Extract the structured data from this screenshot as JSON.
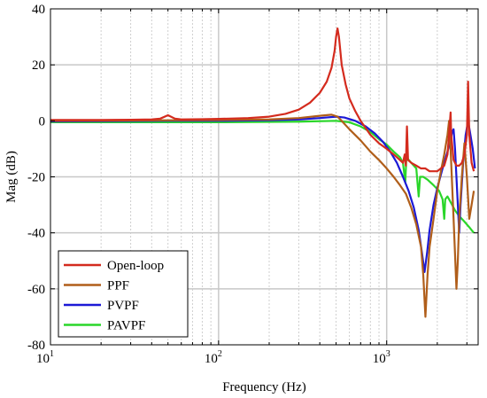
{
  "chart_data": {
    "type": "line",
    "title": "",
    "xlabel": "Frequency (Hz)",
    "ylabel": "Mag (dB)",
    "xscale": "log",
    "xlim": [
      10,
      3500
    ],
    "ylim": [
      -80,
      40
    ],
    "grid": true,
    "legend_position": "bottom-left",
    "x_ticks": [
      {
        "value": 10,
        "base": "10",
        "exp": "1"
      },
      {
        "value": 100,
        "base": "10",
        "exp": "2"
      },
      {
        "value": 1000,
        "base": "10",
        "exp": "3"
      }
    ],
    "y_ticks": [
      {
        "value": 40,
        "label": "40"
      },
      {
        "value": 20,
        "label": "20"
      },
      {
        "value": 0,
        "label": "0"
      },
      {
        "value": -20,
        "label": "-20"
      },
      {
        "value": -40,
        "label": "-40"
      },
      {
        "value": -60,
        "label": "-60"
      },
      {
        "value": -80,
        "label": "-80"
      }
    ],
    "series": [
      {
        "name": "Open-loop",
        "color": "#d42b1e",
        "points": [
          [
            10,
            0.3
          ],
          [
            20,
            0.3
          ],
          [
            30,
            0.4
          ],
          [
            40,
            0.5
          ],
          [
            45,
            0.8
          ],
          [
            50,
            2
          ],
          [
            55,
            0.8
          ],
          [
            60,
            0.5
          ],
          [
            80,
            0.6
          ],
          [
            100,
            0.7
          ],
          [
            150,
            1
          ],
          [
            200,
            1.5
          ],
          [
            250,
            2.5
          ],
          [
            300,
            4
          ],
          [
            350,
            6.5
          ],
          [
            400,
            10
          ],
          [
            440,
            14
          ],
          [
            470,
            19
          ],
          [
            490,
            25
          ],
          [
            500,
            30
          ],
          [
            510,
            33
          ],
          [
            520,
            30
          ],
          [
            540,
            20
          ],
          [
            570,
            13
          ],
          [
            600,
            8
          ],
          [
            650,
            3.5
          ],
          [
            700,
            0
          ],
          [
            800,
            -5
          ],
          [
            900,
            -8
          ],
          [
            1000,
            -10
          ],
          [
            1100,
            -12
          ],
          [
            1200,
            -14
          ],
          [
            1250,
            -15
          ],
          [
            1280,
            -12
          ],
          [
            1300,
            -16
          ],
          [
            1320,
            -2
          ],
          [
            1340,
            -14
          ],
          [
            1400,
            -15
          ],
          [
            1500,
            -16
          ],
          [
            1600,
            -17
          ],
          [
            1700,
            -17
          ],
          [
            1800,
            -18
          ],
          [
            1900,
            -18
          ],
          [
            2000,
            -18
          ],
          [
            2100,
            -17
          ],
          [
            2200,
            -16
          ],
          [
            2300,
            -12
          ],
          [
            2350,
            -5
          ],
          [
            2400,
            3
          ],
          [
            2420,
            -5
          ],
          [
            2500,
            -14
          ],
          [
            2600,
            -16
          ],
          [
            2700,
            -16
          ],
          [
            2800,
            -15
          ],
          [
            2900,
            -12
          ],
          [
            3000,
            -5
          ],
          [
            3050,
            14
          ],
          [
            3100,
            -5
          ],
          [
            3200,
            -15
          ],
          [
            3300,
            -18
          ]
        ]
      },
      {
        "name": "PPF",
        "color": "#b05e1a",
        "points": [
          [
            10,
            0
          ],
          [
            50,
            0.2
          ],
          [
            100,
            0.3
          ],
          [
            200,
            0.5
          ],
          [
            300,
            1
          ],
          [
            400,
            1.8
          ],
          [
            470,
            2.2
          ],
          [
            510,
            1.5
          ],
          [
            540,
            0
          ],
          [
            600,
            -3
          ],
          [
            700,
            -7
          ],
          [
            800,
            -11
          ],
          [
            900,
            -14
          ],
          [
            1000,
            -17
          ],
          [
            1100,
            -20
          ],
          [
            1200,
            -23
          ],
          [
            1300,
            -26
          ],
          [
            1400,
            -31
          ],
          [
            1500,
            -37
          ],
          [
            1600,
            -45
          ],
          [
            1650,
            -55
          ],
          [
            1700,
            -70
          ],
          [
            1750,
            -55
          ],
          [
            1800,
            -45
          ],
          [
            1900,
            -35
          ],
          [
            2000,
            -25
          ],
          [
            2100,
            -18
          ],
          [
            2200,
            -12
          ],
          [
            2300,
            -5
          ],
          [
            2350,
            0
          ],
          [
            2400,
            -10
          ],
          [
            2500,
            -35
          ],
          [
            2600,
            -60
          ],
          [
            2650,
            -50
          ],
          [
            2700,
            -35
          ],
          [
            2800,
            -20
          ],
          [
            2900,
            -8
          ],
          [
            3000,
            -20
          ],
          [
            3100,
            -35
          ],
          [
            3200,
            -30
          ],
          [
            3300,
            -25
          ]
        ]
      },
      {
        "name": "PVPF",
        "color": "#1c19d6",
        "points": [
          [
            10,
            -0.2
          ],
          [
            50,
            0
          ],
          [
            100,
            0
          ],
          [
            200,
            0.2
          ],
          [
            300,
            0.5
          ],
          [
            400,
            1
          ],
          [
            500,
            1.5
          ],
          [
            560,
            1.2
          ],
          [
            650,
            0
          ],
          [
            750,
            -2
          ],
          [
            850,
            -4.5
          ],
          [
            950,
            -7.5
          ],
          [
            1050,
            -11
          ],
          [
            1150,
            -15
          ],
          [
            1250,
            -20
          ],
          [
            1350,
            -25
          ],
          [
            1450,
            -31
          ],
          [
            1550,
            -39
          ],
          [
            1620,
            -47
          ],
          [
            1680,
            -54
          ],
          [
            1740,
            -47
          ],
          [
            1800,
            -39
          ],
          [
            1900,
            -30
          ],
          [
            2000,
            -24
          ],
          [
            2150,
            -17
          ],
          [
            2300,
            -11
          ],
          [
            2400,
            -7
          ],
          [
            2450,
            -4
          ],
          [
            2500,
            -3
          ],
          [
            2550,
            -10
          ],
          [
            2650,
            -30
          ],
          [
            2700,
            -40
          ],
          [
            2750,
            -30
          ],
          [
            2850,
            -15
          ],
          [
            2950,
            -5
          ],
          [
            3050,
            0
          ],
          [
            3150,
            -5
          ],
          [
            3250,
            -10
          ],
          [
            3350,
            -17
          ]
        ]
      },
      {
        "name": "PAVPF",
        "color": "#2ad62a",
        "points": [
          [
            10,
            -0.5
          ],
          [
            100,
            -0.5
          ],
          [
            300,
            -0.3
          ],
          [
            500,
            0
          ],
          [
            600,
            -0.5
          ],
          [
            700,
            -2
          ],
          [
            800,
            -4
          ],
          [
            900,
            -6.5
          ],
          [
            1000,
            -8.5
          ],
          [
            1100,
            -11
          ],
          [
            1200,
            -13
          ],
          [
            1250,
            -15
          ],
          [
            1290,
            -22
          ],
          [
            1310,
            -13
          ],
          [
            1400,
            -15
          ],
          [
            1500,
            -17
          ],
          [
            1550,
            -27
          ],
          [
            1580,
            -20
          ],
          [
            1650,
            -20
          ],
          [
            1750,
            -21
          ],
          [
            1900,
            -23
          ],
          [
            2050,
            -25
          ],
          [
            2150,
            -28
          ],
          [
            2200,
            -35
          ],
          [
            2230,
            -28
          ],
          [
            2300,
            -27
          ],
          [
            2450,
            -30
          ],
          [
            2550,
            -32
          ],
          [
            2700,
            -34
          ],
          [
            2900,
            -36
          ],
          [
            3100,
            -38
          ],
          [
            3300,
            -40
          ]
        ]
      }
    ]
  }
}
